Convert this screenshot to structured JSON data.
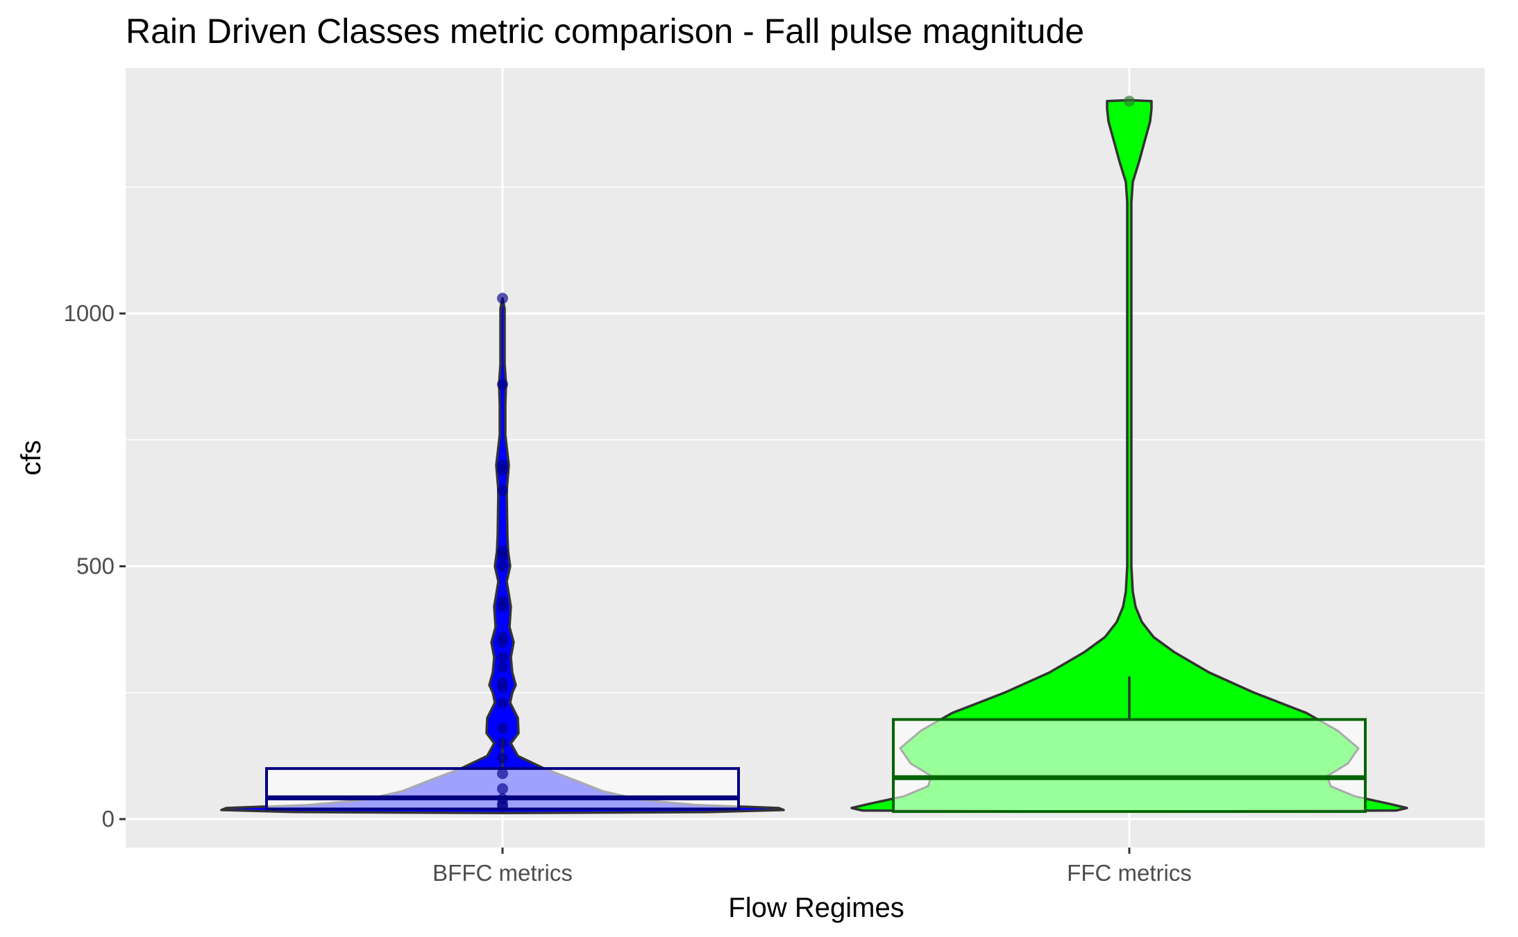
{
  "chart_data": {
    "type": "violin",
    "title": "Rain Driven Classes metric comparison - Fall pulse magnitude",
    "xlabel": "Flow Regimes",
    "ylabel": "cfs",
    "categories": [
      "BFFC metrics",
      "FFC metrics"
    ],
    "yticks": [
      0,
      500,
      1000
    ],
    "ylim": [
      -60,
      1490
    ],
    "grid": true,
    "legend": "none",
    "colors": {
      "panel": "#ebebeb",
      "grid": "#ffffff",
      "bffc_fill": "#0000ff",
      "bffc_box_fill": "#a0a0ff",
      "bffc_box_edge": "#000080",
      "ffc_fill": "#00ff00",
      "ffc_box_fill": "#99ff99",
      "ffc_box_edge": "#006400",
      "outline": "#333333",
      "box_light": "#f7f7f7"
    },
    "series": [
      {
        "category": "BFFC metrics",
        "box": {
          "q1": 20,
          "median": 42,
          "q3": 100,
          "whisker_low": 12,
          "whisker_high": 160
        },
        "violin_range": [
          12,
          1030
        ],
        "points": [
          1030,
          860,
          700,
          690,
          650,
          530,
          520,
          500,
          430,
          420,
          360,
          350,
          320,
          300,
          270,
          260,
          230,
          180,
          150,
          120,
          90,
          60,
          40,
          30,
          25
        ]
      },
      {
        "category": "FFC metrics",
        "box": {
          "q1": 15,
          "median": 82,
          "q3": 197,
          "whisker_low": 15,
          "whisker_high": 282
        },
        "violin_range": [
          15,
          1420
        ],
        "points": [
          1420
        ]
      }
    ]
  }
}
